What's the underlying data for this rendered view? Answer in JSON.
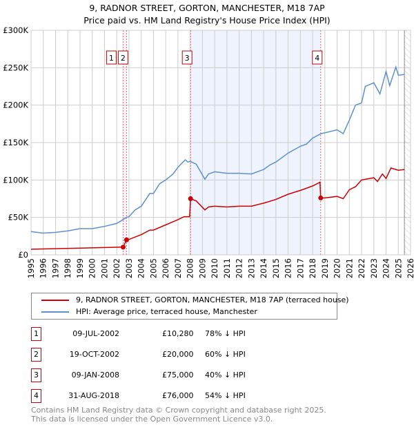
{
  "title": "9, RADNOR STREET, GORTON, MANCHESTER, M18 7AP",
  "subtitle": "Price paid vs. HM Land Registry's House Price Index (HPI)",
  "legend": {
    "property": "9, RADNOR STREET, GORTON, MANCHESTER, M18 7AP (terraced house)",
    "hpi": "HPI: Average price, terraced house, Manchester"
  },
  "colors": {
    "property": "#cc0000",
    "hpi": "#5b8fd0",
    "shade": "#eef3fd"
  },
  "sales": [
    {
      "num": "1",
      "date": "09-JUL-2002",
      "price": "£10,280",
      "hpi": "78% ↓ HPI",
      "x": 2002.52,
      "y": 10.28
    },
    {
      "num": "2",
      "date": "19-OCT-2002",
      "price": "£20,000",
      "hpi": "60% ↓ HPI",
      "x": 2002.8,
      "y": 20
    },
    {
      "num": "3",
      "date": "09-JAN-2008",
      "price": "£75,000",
      "hpi": "40% ↓ HPI",
      "x": 2008.03,
      "y": 75
    },
    {
      "num": "4",
      "date": "31-AUG-2018",
      "price": "£76,000",
      "hpi": "54% ↓ HPI",
      "x": 2018.66,
      "y": 76
    }
  ],
  "footer": {
    "line1": "Contains HM Land Registry data © Crown copyright and database right 2025.",
    "line2": "This data is licensed under the Open Government Licence v3.0."
  },
  "chart_data": {
    "type": "line",
    "xlim": [
      1995,
      2026
    ],
    "ylim": [
      0,
      300
    ],
    "y_unit": "£K",
    "yticks": [
      {
        "v": 0,
        "label": "£0"
      },
      {
        "v": 50,
        "label": "£50K"
      },
      {
        "v": 100,
        "label": "£100K"
      },
      {
        "v": 150,
        "label": "£150K"
      },
      {
        "v": 200,
        "label": "£200K"
      },
      {
        "v": 250,
        "label": "£250K"
      },
      {
        "v": 300,
        "label": "£300K"
      }
    ],
    "xticks": [
      "1995",
      "1996",
      "1997",
      "1998",
      "1999",
      "2000",
      "2001",
      "2002",
      "2003",
      "2004",
      "2005",
      "2006",
      "2007",
      "2008",
      "2009",
      "2010",
      "2011",
      "2012",
      "2013",
      "2014",
      "2015",
      "2016",
      "2017",
      "2018",
      "2019",
      "2020",
      "2021",
      "2022",
      "2023",
      "2024",
      "2025",
      "2026"
    ],
    "data_end": 2025.5,
    "series": [
      {
        "name": "hpi",
        "x": [
          1995,
          1996,
          1997,
          1998,
          1999,
          2000,
          2001,
          2002,
          2002.8,
          2003,
          2003.5,
          2004,
          2004.7,
          2005,
          2005.5,
          2006,
          2006.6,
          2007,
          2007.6,
          2007.8,
          2008,
          2008.5,
          2009.2,
          2009.5,
          2010,
          2011,
          2012,
          2013,
          2014,
          2014.5,
          2015,
          2016,
          2017,
          2017.5,
          2018,
          2018.7,
          2019,
          2020,
          2020.5,
          2021,
          2021.5,
          2022,
          2022.3,
          2023,
          2023.5,
          2024,
          2024.3,
          2024.8,
          2025,
          2025.5
        ],
        "values": [
          31,
          29,
          30,
          32,
          35,
          35,
          38,
          42,
          50,
          51,
          60,
          65,
          82,
          82,
          95,
          100,
          108,
          117,
          127,
          124,
          125,
          121,
          101,
          108,
          111,
          109,
          109,
          108,
          114,
          120,
          124,
          136,
          145,
          148,
          156,
          162,
          163,
          167,
          162,
          180,
          200,
          203,
          225,
          230,
          215,
          245,
          226,
          251,
          240,
          241
        ]
      },
      {
        "name": "property",
        "x": [
          1995,
          2002.52,
          2002.8,
          2003,
          2004,
          2004.7,
          2005,
          2006,
          2007,
          2007.5,
          2007.95,
          2008.03,
          2008.5,
          2009.2,
          2009.5,
          2010,
          2011,
          2012,
          2013,
          2014,
          2015,
          2016,
          2017,
          2018,
          2018.6,
          2018.66,
          2019,
          2020,
          2020.5,
          2021,
          2021.5,
          2022,
          2023,
          2023.3,
          2023.7,
          2024,
          2024.4,
          2025,
          2025.5
        ],
        "values": [
          7.5,
          10.28,
          20,
          20.5,
          27,
          33,
          33,
          40,
          47,
          51,
          51,
          75,
          72,
          60,
          64,
          65,
          64,
          65,
          65,
          69,
          74,
          81,
          86,
          92,
          97,
          76,
          76,
          78,
          75,
          87,
          91,
          100,
          103,
          98,
          108,
          102,
          116,
          113,
          114
        ]
      }
    ]
  }
}
